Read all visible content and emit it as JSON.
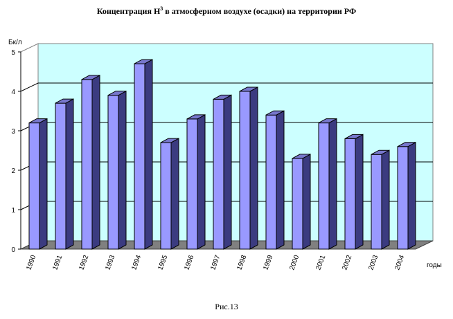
{
  "chart_data": {
    "type": "bar",
    "title": "Концентрация Н",
    "title_superscript": "3",
    "title_rest": " в атмосферном воздухе (осадки) на территории РФ",
    "ylabel": "Бк/л",
    "xlabel": "годы",
    "ylim": [
      0,
      5
    ],
    "yticks": [
      "0",
      "1",
      "2",
      "3",
      "4",
      "5"
    ],
    "grid": true,
    "categories": [
      "1990",
      "1991",
      "1992",
      "1993",
      "1994",
      "1995",
      "1996",
      "1997",
      "1998",
      "1999",
      "2000",
      "2001",
      "2002",
      "2003",
      "2004"
    ],
    "values": [
      3.2,
      3.7,
      4.3,
      3.9,
      4.7,
      2.7,
      3.3,
      3.8,
      4.0,
      3.4,
      2.3,
      3.2,
      2.8,
      2.4,
      2.6
    ],
    "colors": {
      "bar_front": "#9999ff",
      "bar_side": "#3b3b80",
      "bar_top": "#7777cc",
      "back_wall": "#ccffff",
      "floor": "#808080",
      "grid": "#000000"
    }
  },
  "caption": "Рис.13"
}
